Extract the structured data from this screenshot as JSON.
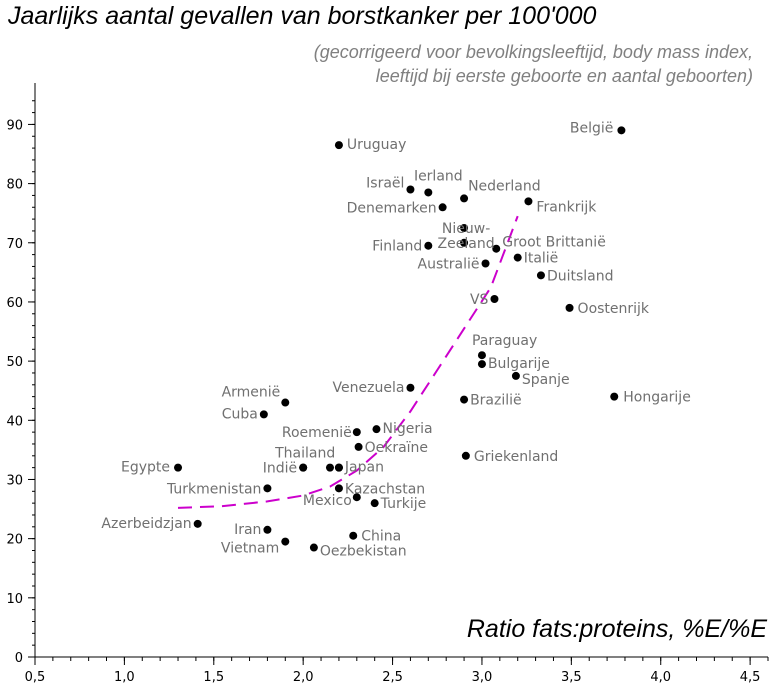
{
  "chart_data": {
    "type": "scatter",
    "title": "Jaarlijks aantal gevallen van borstkanker per 100'000",
    "subtitle_lines": [
      "(gecorrigeerd voor bevolkingsleeftijd, body mass index,",
      "leeftijd bij eerste geboorte en aantal geboorten)"
    ],
    "xlabel": "Ratio fats:proteins, %E/%E",
    "ylabel": "",
    "xlim": [
      0.5,
      4.6
    ],
    "ylim": [
      0,
      97
    ],
    "x_ticks": [
      "0,5",
      "1,0",
      "1,5",
      "2,0",
      "2,5",
      "3,0",
      "3,5",
      "4,0",
      "4,5"
    ],
    "x_tick_values": [
      0.5,
      1.0,
      1.5,
      2.0,
      2.5,
      3.0,
      3.5,
      4.0,
      4.5
    ],
    "y_ticks": [
      "0",
      "10",
      "20",
      "30",
      "40",
      "50",
      "60",
      "70",
      "80",
      "90"
    ],
    "y_tick_values": [
      0,
      10,
      20,
      30,
      40,
      50,
      60,
      70,
      80,
      90
    ],
    "grid": false,
    "points": [
      {
        "label": "België",
        "x": 3.78,
        "y": 89,
        "anchor": "end",
        "dx": -8,
        "dy": 2
      },
      {
        "label": "Uruguay",
        "x": 2.2,
        "y": 86.5,
        "anchor": "start",
        "dx": 8,
        "dy": 4
      },
      {
        "label": "Israël",
        "x": 2.6,
        "y": 79,
        "anchor": "end",
        "dx": -6,
        "dy": -2
      },
      {
        "label": "Ierland",
        "x": 2.7,
        "y": 78.5,
        "anchor": "middle",
        "dx": 10,
        "dy": -12
      },
      {
        "label": "Nederland",
        "x": 2.9,
        "y": 77.5,
        "anchor": "start",
        "dx": 4,
        "dy": -8
      },
      {
        "label": "Denemarken",
        "x": 2.78,
        "y": 76,
        "anchor": "end",
        "dx": -6,
        "dy": 5
      },
      {
        "label": "Frankrijk",
        "x": 3.26,
        "y": 77,
        "anchor": "start",
        "dx": 8,
        "dy": 10
      },
      {
        "label": "Nieuw-",
        "x": 2.9,
        "y": 72.5,
        "anchor": "middle",
        "dx": 2,
        "dy": 5
      },
      {
        "label": "Zeeland",
        "x": 2.9,
        "y": 70,
        "anchor": "middle",
        "dx": 2,
        "dy": 5
      },
      {
        "label": "Finland",
        "x": 2.7,
        "y": 69.5,
        "anchor": "end",
        "dx": -6,
        "dy": 5
      },
      {
        "label": "Groot Brittanië",
        "x": 3.08,
        "y": 69,
        "anchor": "start",
        "dx": 6,
        "dy": -2
      },
      {
        "label": "Australië",
        "x": 3.02,
        "y": 66.5,
        "anchor": "end",
        "dx": -6,
        "dy": 5
      },
      {
        "label": "Italië",
        "x": 3.2,
        "y": 67.5,
        "anchor": "start",
        "dx": 6,
        "dy": 5
      },
      {
        "label": "Duitsland",
        "x": 3.33,
        "y": 64.5,
        "anchor": "start",
        "dx": 6,
        "dy": 5
      },
      {
        "label": "VS",
        "x": 3.07,
        "y": 60.5,
        "anchor": "end",
        "dx": -6,
        "dy": 5
      },
      {
        "label": "Oostenrijk",
        "x": 3.49,
        "y": 59,
        "anchor": "start",
        "dx": 8,
        "dy": 5
      },
      {
        "label": "Paraguay",
        "x": 3.0,
        "y": 51,
        "anchor": "start",
        "dx": -10,
        "dy": -10
      },
      {
        "label": "Bulgarije",
        "x": 3.0,
        "y": 49.5,
        "anchor": "start",
        "dx": 6,
        "dy": 4
      },
      {
        "label": "Spanje",
        "x": 3.19,
        "y": 47.5,
        "anchor": "start",
        "dx": 6,
        "dy": 8
      },
      {
        "label": "Venezuela",
        "x": 2.6,
        "y": 45.5,
        "anchor": "end",
        "dx": -6,
        "dy": 4
      },
      {
        "label": "Brazilië",
        "x": 2.9,
        "y": 43.5,
        "anchor": "start",
        "dx": 6,
        "dy": 5
      },
      {
        "label": "Hongarije",
        "x": 3.74,
        "y": 44,
        "anchor": "start",
        "dx": 9,
        "dy": 5
      },
      {
        "label": "Armenië",
        "x": 1.9,
        "y": 43,
        "anchor": "end",
        "dx": -5,
        "dy": -6
      },
      {
        "label": "Cuba",
        "x": 1.78,
        "y": 41,
        "anchor": "end",
        "dx": -6,
        "dy": 4
      },
      {
        "label": "Roemenië",
        "x": 2.3,
        "y": 38,
        "anchor": "end",
        "dx": -5,
        "dy": 5
      },
      {
        "label": "Nigeria",
        "x": 2.41,
        "y": 38.5,
        "anchor": "start",
        "dx": 6,
        "dy": 4
      },
      {
        "label": "Oekraïne",
        "x": 2.31,
        "y": 35.5,
        "anchor": "start",
        "dx": 6,
        "dy": 5
      },
      {
        "label": "Griekenland",
        "x": 2.91,
        "y": 34,
        "anchor": "start",
        "dx": 8,
        "dy": 5
      },
      {
        "label": "Thailand",
        "x": 2.0,
        "y": 32,
        "anchor": "middle",
        "dx": 2,
        "dy": -10
      },
      {
        "label": "Indië",
        "x": 2.0,
        "y": 32,
        "anchor": "end",
        "dx": -6,
        "dy": 5
      },
      {
        "label": "Japan",
        "x": 2.2,
        "y": 32,
        "anchor": "start",
        "dx": 6,
        "dy": 4
      },
      {
        "label": "Egypte",
        "x": 1.3,
        "y": 32,
        "anchor": "end",
        "dx": -8,
        "dy": 4
      },
      {
        "label": "Turkmenistan",
        "x": 1.8,
        "y": 28.5,
        "anchor": "end",
        "dx": -6,
        "dy": 5
      },
      {
        "label": "Kazachstan",
        "x": 2.2,
        "y": 28.5,
        "anchor": "start",
        "dx": 6,
        "dy": 5
      },
      {
        "label": "Mexico",
        "x": 2.3,
        "y": 27,
        "anchor": "end",
        "dx": -5,
        "dy": 8
      },
      {
        "label": "Turkije",
        "x": 2.4,
        "y": 26,
        "anchor": "start",
        "dx": 6,
        "dy": 5
      },
      {
        "label": "Azerbeidzjan",
        "x": 1.41,
        "y": 22.5,
        "anchor": "end",
        "dx": -6,
        "dy": 4
      },
      {
        "label": "Iran",
        "x": 1.8,
        "y": 21.5,
        "anchor": "end",
        "dx": -6,
        "dy": 4
      },
      {
        "label": "China",
        "x": 2.28,
        "y": 20.5,
        "anchor": "start",
        "dx": 8,
        "dy": 5
      },
      {
        "label": "Vietnam",
        "x": 1.9,
        "y": 19.5,
        "anchor": "end",
        "dx": -6,
        "dy": 11
      },
      {
        "label": "Oezbekistan",
        "x": 2.06,
        "y": 18.5,
        "anchor": "start",
        "dx": 6,
        "dy": 8
      }
    ],
    "extra_points": [
      {
        "x": 2.2,
        "y": 32
      },
      {
        "x": 2.15,
        "y": 32
      }
    ],
    "trend_line": {
      "color": "#cc00cc",
      "points": [
        [
          1.3,
          25.2
        ],
        [
          1.55,
          25.5
        ],
        [
          1.8,
          26.3
        ],
        [
          2.0,
          27.3
        ],
        [
          2.15,
          28.8
        ],
        [
          2.3,
          31.5
        ],
        [
          2.45,
          35.5
        ],
        [
          2.6,
          41.5
        ],
        [
          2.75,
          48.5
        ],
        [
          2.9,
          55.5
        ],
        [
          3.05,
          62.5
        ],
        [
          3.2,
          74.5
        ]
      ]
    }
  }
}
